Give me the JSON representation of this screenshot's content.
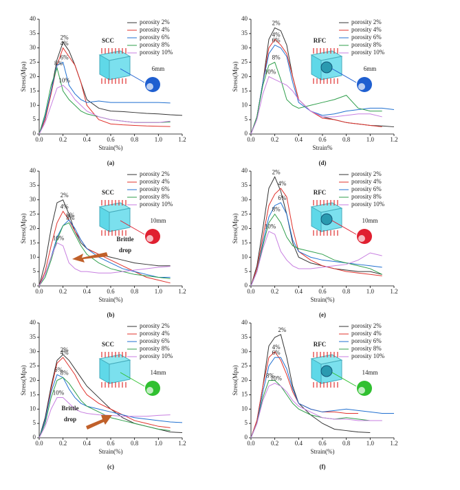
{
  "chart_data": [
    {
      "type": "line",
      "caption": "(a)",
      "label": "SCC",
      "label_color": "#1f78c8",
      "inset_label": "6mm",
      "ball_color": "#1f5fd0",
      "x_label": "Strain(%)",
      "y_label": "Stress(Mpa)",
      "x": [
        0,
        0.05,
        0.1,
        0.15,
        0.2,
        0.25,
        0.3,
        0.35,
        0.4,
        0.5,
        0.6,
        0.7,
        0.8,
        0.9,
        1.0,
        1.1,
        1.2
      ],
      "xlim": [
        0,
        1.2
      ],
      "xticks": [
        {
          "value": 0,
          "label": "0.0"
        },
        0.2,
        0.4,
        0.6,
        0.8,
        {
          "value": 1,
          "label": "1.0"
        },
        1.2
      ],
      "ylim": [
        0,
        40
      ],
      "yticks": [
        0,
        5,
        10,
        15,
        20,
        25,
        30,
        35,
        40
      ],
      "series": [
        {
          "name": "porosity 2%",
          "peak_label": "2%",
          "color": "#333333",
          "values": [
            0,
            5,
            15,
            26,
            32,
            29,
            24,
            18,
            12,
            9,
            8,
            7.8,
            7.5,
            7.2,
            7,
            6.7,
            6.5
          ]
        },
        {
          "name": "porosity 4%",
          "peak_label": "4%",
          "color": "#e0302a",
          "values": [
            0,
            5,
            14,
            24,
            30,
            27,
            24,
            18,
            10,
            5,
            3.5,
            3.2,
            3,
            2.8,
            2.7,
            2.6,
            null
          ]
        },
        {
          "name": "porosity 6%",
          "peak_label": "6%",
          "color": "#1f6fd0",
          "values": [
            0,
            6,
            15,
            24,
            25,
            17,
            14,
            12,
            11,
            11.5,
            11,
            11,
            11,
            11,
            11,
            10.8,
            null
          ]
        },
        {
          "name": "porosity 8%",
          "peak_label": "8%",
          "color": "#2e9e4a",
          "values": [
            0,
            7,
            17,
            23,
            15,
            12,
            10,
            8,
            7,
            6,
            5,
            4.5,
            4,
            4,
            4,
            4.2,
            null
          ]
        },
        {
          "name": "porosity 10%",
          "peak_label": "10%",
          "color": "#c77ee0",
          "values": [
            0,
            4,
            10,
            16,
            17,
            15,
            12,
            10,
            8,
            6,
            5,
            4.5,
            4,
            4,
            4,
            4.5,
            null
          ]
        }
      ]
    },
    {
      "type": "line",
      "caption": "(b)",
      "label": "SCC",
      "label_color": "#1f78c8",
      "inset_label": "10mm",
      "ball_color": "#e02030",
      "annotation": "Brittle drop",
      "x_label": "Strain(%)",
      "y_label": "Stress(Mpa)",
      "x": [
        0,
        0.05,
        0.1,
        0.15,
        0.2,
        0.25,
        0.3,
        0.35,
        0.4,
        0.5,
        0.6,
        0.7,
        0.8,
        0.9,
        1.0,
        1.1,
        1.2
      ],
      "xlim": [
        0,
        1.2
      ],
      "xticks": [
        {
          "value": 0,
          "label": "0.0"
        },
        0.2,
        0.4,
        0.6,
        0.8,
        {
          "value": 1,
          "label": "1.0"
        },
        1.2
      ],
      "ylim": [
        0,
        40
      ],
      "yticks": [
        0,
        5,
        10,
        15,
        20,
        25,
        30,
        35,
        40
      ],
      "series": [
        {
          "name": "porosity 2%",
          "peak_label": "2%",
          "color": "#333333",
          "values": [
            0,
            8,
            20,
            29,
            30,
            25,
            19,
            15,
            13,
            11,
            10,
            9,
            8,
            7.5,
            7,
            7,
            null
          ]
        },
        {
          "name": "porosity 4%",
          "peak_label": "4%",
          "color": "#e0302a",
          "values": [
            0,
            5,
            14,
            22,
            26,
            23,
            19,
            16,
            13,
            11,
            9,
            7,
            5,
            3,
            2,
            1,
            null
          ]
        },
        {
          "name": "porosity 6%",
          "peak_label": "6%",
          "color": "#1f6fd0",
          "values": [
            0,
            4,
            10,
            17,
            21,
            23,
            20,
            16,
            13,
            10,
            8,
            6,
            5,
            4,
            3,
            3,
            null
          ]
        },
        {
          "name": "porosity 8%",
          "peak_label": "8%",
          "color": "#2e9e4a",
          "values": [
            0,
            3,
            9,
            16,
            21,
            22,
            18,
            14,
            11,
            8,
            6,
            5,
            4,
            3.5,
            3,
            2.5,
            null
          ]
        },
        {
          "name": "porosity 10%",
          "peak_label": "10%",
          "color": "#c77ee0",
          "values": [
            0,
            4,
            10,
            15,
            14,
            8,
            6,
            5,
            5,
            4.5,
            4.5,
            5,
            5.5,
            6,
            6.5,
            6.8,
            null
          ]
        }
      ]
    },
    {
      "type": "line",
      "caption": "(c)",
      "label": "SCC",
      "label_color": "#1f78c8",
      "inset_label": "14mm",
      "ball_color": "#30c030",
      "annotation": "Brittle drop",
      "x_label": "Strain(%)",
      "y_label": "Stress(Mpa)",
      "x": [
        0,
        0.05,
        0.1,
        0.15,
        0.2,
        0.25,
        0.3,
        0.35,
        0.4,
        0.5,
        0.6,
        0.7,
        0.8,
        0.9,
        1.0,
        1.1,
        1.2
      ],
      "xlim": [
        0,
        1.2
      ],
      "xticks": [
        {
          "value": 0,
          "label": "0.0"
        },
        0.2,
        0.4,
        0.6,
        0.8,
        {
          "value": 1,
          "label": "1.0"
        },
        1.2
      ],
      "ylim": [
        0,
        40
      ],
      "yticks": [
        0,
        5,
        10,
        15,
        20,
        25,
        30,
        35,
        40
      ],
      "series": [
        {
          "name": "porosity 2%",
          "peak_label": "2%",
          "color": "#333333",
          "values": [
            0,
            7,
            18,
            27,
            29,
            27,
            24,
            21,
            18,
            14,
            10,
            7,
            5,
            4,
            3,
            2,
            1.8
          ]
        },
        {
          "name": "porosity 4%",
          "peak_label": "4%",
          "color": "#e0302a",
          "values": [
            0,
            6,
            17,
            26,
            28,
            25,
            22,
            18,
            15,
            12,
            10,
            8,
            6,
            5,
            4,
            3.5,
            null
          ]
        },
        {
          "name": "porosity 6%",
          "peak_label": "6%",
          "color": "#1f6fd0",
          "values": [
            0,
            6,
            16,
            22,
            21,
            17,
            14,
            12,
            11,
            10,
            9,
            8,
            7,
            6.5,
            6,
            5.5,
            5.3
          ]
        },
        {
          "name": "porosity 8%",
          "peak_label": "8%",
          "color": "#2e9e4a",
          "values": [
            0,
            5,
            14,
            20,
            21,
            19,
            16,
            13,
            11,
            9,
            7,
            6,
            5,
            4,
            3,
            2.5,
            null
          ]
        },
        {
          "name": "porosity 10%",
          "peak_label": "10%",
          "color": "#c77ee0",
          "values": [
            0,
            4,
            10,
            14,
            14,
            12,
            10,
            9,
            8.5,
            8,
            7.8,
            7.5,
            7.5,
            7.5,
            7.8,
            8,
            null
          ]
        }
      ]
    },
    {
      "type": "line",
      "caption": "(d)",
      "label": "RFC",
      "label_color": "#e02020",
      "inset_label": "6mm",
      "ball_color": "#1f5fd0",
      "x_label": "Strain%",
      "y_label": "Stress(Mpa)",
      "x": [
        0,
        0.05,
        0.1,
        0.15,
        0.2,
        0.25,
        0.3,
        0.35,
        0.4,
        0.5,
        0.6,
        0.7,
        0.8,
        0.9,
        1.0,
        1.1,
        1.2
      ],
      "xlim": [
        0,
        1.2
      ],
      "xticks": [
        {
          "value": 0,
          "label": "0.0"
        },
        0.2,
        0.4,
        0.6,
        0.8,
        {
          "value": 1,
          "label": "1.0"
        },
        1.2
      ],
      "ylim": [
        0,
        40
      ],
      "yticks": [
        0,
        5,
        10,
        15,
        20,
        25,
        30,
        35,
        40
      ],
      "series": [
        {
          "name": "porosity 2%",
          "peak_label": "2%",
          "color": "#333333",
          "values": [
            0,
            6,
            18,
            33,
            37,
            36,
            31,
            20,
            12,
            8,
            6,
            5,
            4,
            3.5,
            3,
            2.8,
            2.5
          ]
        },
        {
          "name": "porosity 4%",
          "peak_label": "4%",
          "color": "#e0302a",
          "values": [
            0,
            6,
            18,
            30,
            33,
            31,
            28,
            20,
            12,
            8,
            5.5,
            5,
            4,
            3.5,
            3,
            2.5,
            null
          ]
        },
        {
          "name": "porosity 6%",
          "peak_label": "6%",
          "color": "#1f6fd0",
          "values": [
            0,
            6,
            18,
            28,
            31,
            30,
            27,
            18,
            11,
            8,
            6.5,
            7,
            8,
            8.5,
            9,
            9,
            8.5
          ]
        },
        {
          "name": "porosity 8%",
          "peak_label": "8%",
          "color": "#2e9e4a",
          "values": [
            0,
            6,
            17,
            24,
            25,
            19,
            12,
            10,
            9,
            10,
            11,
            12,
            13.5,
            9,
            8,
            8,
            null
          ]
        },
        {
          "name": "porosity 10%",
          "peak_label": "10%",
          "color": "#c77ee0",
          "values": [
            0,
            5,
            14,
            20,
            19,
            18,
            17,
            15,
            12,
            8,
            6,
            6,
            6.5,
            7,
            7,
            6,
            null
          ]
        }
      ]
    },
    {
      "type": "line",
      "caption": "(e)",
      "label": "RFC",
      "label_color": "#e02020",
      "inset_label": "10mm",
      "ball_color": "#e02030",
      "x_label": "Strain(%)",
      "y_label": "Stress(Mpa)",
      "x": [
        0,
        0.05,
        0.1,
        0.15,
        0.2,
        0.25,
        0.3,
        0.35,
        0.4,
        0.5,
        0.6,
        0.7,
        0.8,
        0.9,
        1.0,
        1.1,
        1.2
      ],
      "xlim": [
        0,
        1.2
      ],
      "xticks": [
        {
          "value": 0,
          "label": "0.0"
        },
        0.2,
        0.4,
        0.6,
        0.8,
        {
          "value": 1,
          "label": "1.0"
        },
        1.2
      ],
      "ylim": [
        0,
        40
      ],
      "yticks": [
        0,
        5,
        10,
        15,
        20,
        25,
        30,
        35,
        40
      ],
      "series": [
        {
          "name": "porosity 2%",
          "peak_label": "2%",
          "color": "#333333",
          "values": [
            0,
            7,
            20,
            34,
            38,
            33,
            25,
            15,
            10,
            8,
            7,
            6,
            5.5,
            5,
            5,
            4,
            null
          ]
        },
        {
          "name": "porosity 4%",
          "peak_label": "4%",
          "color": "#e0302a",
          "values": [
            0,
            6,
            17,
            28,
            32,
            34,
            31,
            20,
            12,
            9,
            7,
            6,
            5,
            4.5,
            4,
            3.5,
            null
          ]
        },
        {
          "name": "porosity 6%",
          "peak_label": "6%",
          "color": "#1f6fd0",
          "values": [
            0,
            5,
            15,
            24,
            28,
            29,
            25,
            16,
            12,
            10,
            9,
            8.5,
            8,
            7.5,
            7,
            6.5,
            null
          ]
        },
        {
          "name": "porosity 8%",
          "peak_label": "8%",
          "color": "#2e9e4a",
          "values": [
            0,
            5,
            14,
            22,
            25,
            22,
            17,
            14,
            13,
            12,
            11,
            9,
            8,
            7,
            6,
            4,
            null
          ]
        },
        {
          "name": "porosity 10%",
          "peak_label": "10%",
          "color": "#c77ee0",
          "values": [
            0,
            5,
            13,
            19,
            18,
            12,
            9,
            7,
            6,
            6,
            6.5,
            7,
            7.5,
            9,
            11.5,
            10.5,
            null
          ]
        }
      ]
    },
    {
      "type": "line",
      "caption": "(f)",
      "label": "RFC",
      "label_color": "#e02020",
      "inset_label": "14mm",
      "ball_color": "#30c030",
      "x_label": "Strain(%)",
      "y_label": "Stress(Mpa)",
      "x": [
        0,
        0.05,
        0.1,
        0.15,
        0.2,
        0.25,
        0.3,
        0.35,
        0.4,
        0.5,
        0.6,
        0.7,
        0.8,
        0.9,
        1.0,
        1.1,
        1.2
      ],
      "xlim": [
        0,
        1.2
      ],
      "xticks": [
        {
          "value": 0,
          "label": "0.0"
        },
        0.2,
        0.4,
        0.6,
        0.8,
        {
          "value": 1,
          "label": "1.0"
        },
        1.2
      ],
      "ylim": [
        0,
        40
      ],
      "yticks": [
        0,
        5,
        10,
        15,
        20,
        25,
        30,
        35,
        40
      ],
      "series": [
        {
          "name": "porosity 2%",
          "peak_label": "2%",
          "color": "#333333",
          "values": [
            0,
            6,
            18,
            32,
            35,
            36,
            28,
            18,
            12,
            8,
            5,
            3,
            2.5,
            2,
            1.8,
            null,
            null
          ]
        },
        {
          "name": "porosity 4%",
          "peak_label": "4%",
          "color": "#e0302a",
          "values": [
            0,
            6,
            18,
            28,
            30,
            27,
            22,
            16,
            12,
            10,
            9,
            9,
            8.5,
            8.5,
            null,
            null,
            null
          ]
        },
        {
          "name": "porosity 6%",
          "peak_label": "6%",
          "color": "#1f6fd0",
          "values": [
            0,
            5,
            16,
            25,
            28,
            28,
            24,
            17,
            12,
            10,
            9,
            9.5,
            10,
            9.5,
            9,
            8.5,
            8.5
          ]
        },
        {
          "name": "porosity 8%",
          "peak_label": "8%",
          "color": "#2e9e4a",
          "values": [
            0,
            5,
            14,
            20,
            20,
            18,
            15,
            12,
            10,
            8,
            7,
            6.5,
            7,
            6.5,
            6,
            6,
            null
          ]
        },
        {
          "name": "porosity 10%",
          "peak_label": "10%",
          "color": "#c77ee0",
          "values": [
            0,
            5,
            13,
            18,
            19,
            18,
            16,
            13,
            11,
            9,
            7,
            6.5,
            6.5,
            6,
            6,
            6,
            null
          ]
        }
      ]
    }
  ]
}
